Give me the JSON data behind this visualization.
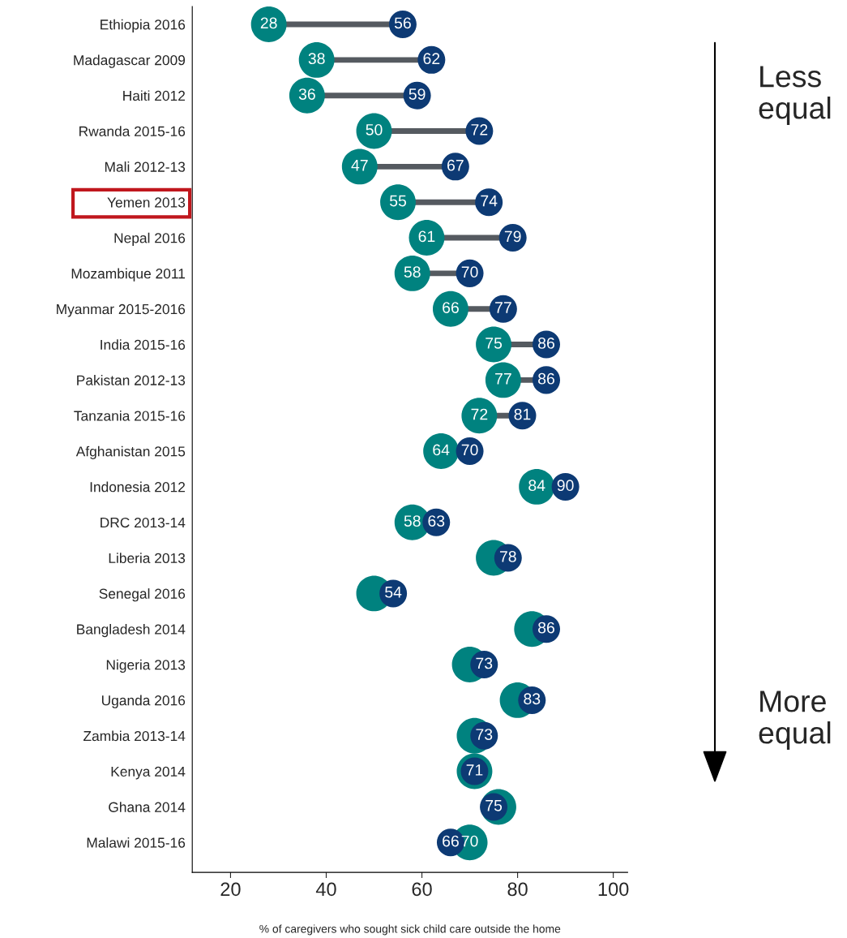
{
  "chart_data": {
    "type": "scatter",
    "orientation": "horizontal",
    "marker": "circle",
    "grid": false,
    "xlabel": "% of caregivers who sought sick child care outside the home",
    "xlim": [
      12,
      103
    ],
    "xticks": [
      20,
      40,
      60,
      80,
      100
    ],
    "categories": [
      "Ethiopia 2016",
      "Madagascar 2009",
      "Haiti 2012",
      "Rwanda 2015-16",
      "Mali 2012-13",
      "Yemen 2013",
      "Nepal 2016",
      "Mozambique 2011",
      "Myanmar 2015-2016",
      "India 2015-16",
      "Pakistan 2012-13",
      "Tanzania 2015-16",
      "Afghanistan 2015",
      "Indonesia 2012",
      "DRC 2013-14",
      "Liberia 2013",
      "Senegal 2016",
      "Bangladesh 2014",
      "Nigeria 2013",
      "Uganda 2016",
      "Zambia 2013-14",
      "Kenya 2014",
      "Ghana 2014",
      "Malawi 2015-16"
    ],
    "series": [
      {
        "color": "#00827f",
        "values": [
          28,
          38,
          36,
          50,
          47,
          55,
          61,
          58,
          66,
          75,
          77,
          72,
          64,
          84,
          58,
          75,
          50,
          83,
          70,
          80,
          71,
          71,
          76,
          70
        ],
        "value_labels": [
          "28",
          "38",
          "36",
          "50",
          "47",
          "55",
          "61",
          "58",
          "66",
          "75",
          "77",
          "72",
          "64",
          "84",
          "58",
          null,
          null,
          null,
          null,
          null,
          null,
          null,
          null,
          "70"
        ]
      },
      {
        "color": "#0d3a74",
        "values": [
          56,
          62,
          59,
          72,
          67,
          74,
          79,
          70,
          77,
          86,
          86,
          81,
          70,
          90,
          63,
          78,
          54,
          86,
          73,
          83,
          73,
          71,
          75,
          66
        ],
        "value_labels": [
          "56",
          "62",
          "59",
          "72",
          "67",
          "74",
          "79",
          "70",
          "77",
          "86",
          "86",
          "81",
          "70",
          "90",
          "63",
          "78",
          "54",
          "86",
          "73",
          "83",
          "73",
          "71",
          "75",
          "66"
        ]
      }
    ],
    "annotations": [
      "Less\nequal",
      "More\nequal"
    ]
  }
}
